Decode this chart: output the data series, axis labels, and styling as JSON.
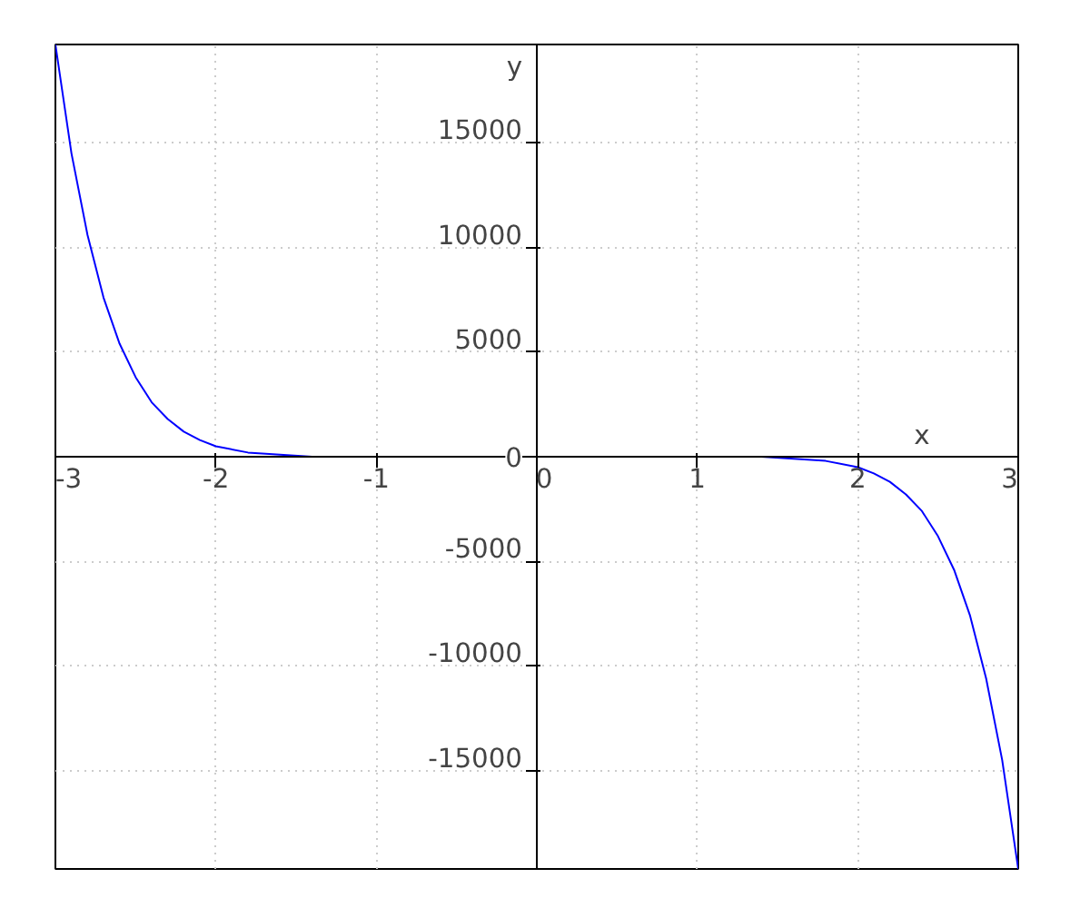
{
  "chart_data": {
    "type": "line",
    "xlabel": "x",
    "ylabel": "y",
    "series": [
      {
        "color": "#0000ff",
        "x": [
          -3,
          -2.9,
          -2.8,
          -2.7,
          -2.6,
          -2.5,
          -2.4,
          -2.3,
          -2.2,
          -2.1,
          -2,
          -1.8,
          -1.6,
          -1.4,
          -1.2,
          -1,
          -0.5,
          0,
          0.5,
          1,
          1.2,
          1.4,
          1.6,
          1.8,
          2,
          2.1,
          2.2,
          2.3,
          2.4,
          2.5,
          2.6,
          2.7,
          2.8,
          2.9,
          3
        ],
        "values": [
          19700,
          14500,
          10600,
          7600,
          5400,
          3800,
          2600,
          1800,
          1200,
          800,
          500,
          200,
          100,
          0,
          0,
          0,
          0,
          0,
          0,
          0,
          0,
          0,
          -100,
          -200,
          -500,
          -800,
          -1200,
          -1800,
          -2600,
          -3800,
          -5400,
          -7600,
          -10600,
          -14500,
          -19700
        ]
      }
    ],
    "xlim": [
      -3,
      3
    ],
    "ylim": [
      -19700,
      19700
    ],
    "xticks": [
      -3,
      -2,
      -1,
      0,
      1,
      2,
      3
    ],
    "yticks": [
      -15000,
      -10000,
      -5000,
      0,
      5000,
      10000,
      15000
    ],
    "grid": true,
    "line_style": "solid",
    "marker": "none"
  }
}
